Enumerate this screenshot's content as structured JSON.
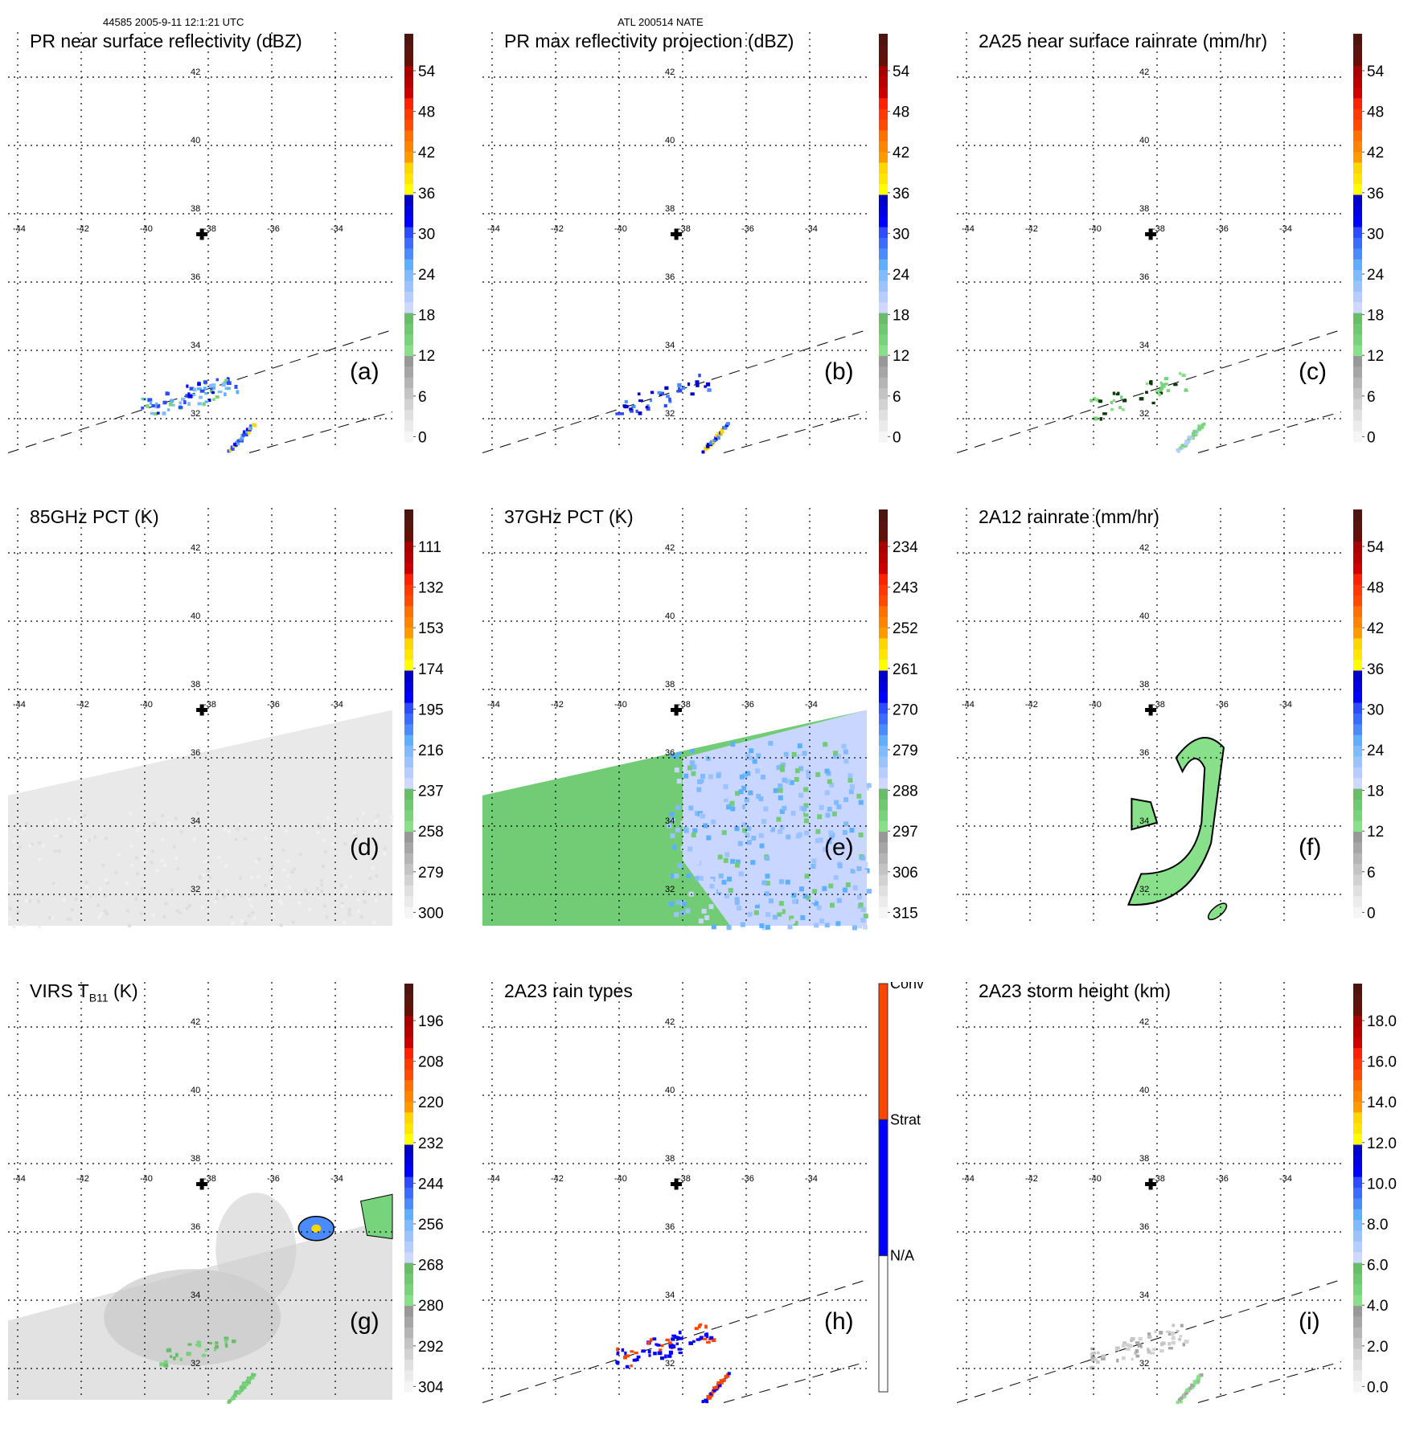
{
  "header": {
    "left": "44585 2005-9-11 12:1:21 UTC",
    "center": "ATL 200514 NATE"
  },
  "map": {
    "lon_ticks": [
      "-44",
      "-42",
      "-40",
      "-38",
      "-36",
      "-34"
    ],
    "lat_ticks": [
      "42",
      "40",
      "38",
      "36",
      "34",
      "32"
    ],
    "lon_values": [
      -44,
      -42,
      -40,
      -38,
      -36,
      -34
    ],
    "lat_values": [
      42,
      40,
      38,
      36,
      34,
      32
    ],
    "center_marker": {
      "lon": -38.2,
      "lat": 37.4,
      "icon": "plus-cross-icon"
    }
  },
  "colors": {
    "scale17": [
      "#f5f5f5",
      "#ebebeb",
      "#e0e0e0",
      "#d2d2d2",
      "#c4c4c4",
      "#b5b5b5",
      "#a6a6a6",
      "#989898",
      "#88e08a",
      "#78d47c",
      "#6fc872",
      "#68bc6a",
      "#cfd8ff",
      "#b6cdfe",
      "#9cc3fe",
      "#80baff",
      "#5db0ff",
      "#4a8cff",
      "#3c6cff",
      "#2e4bff",
      "#0000ff",
      "#0000e0",
      "#0000c8",
      "#ffff00",
      "#ffe600",
      "#ffd600",
      "#ff9900",
      "#ff8400",
      "#ff7000",
      "#ff4a00",
      "#ff3a00",
      "#ff2200",
      "#cc0000",
      "#b80000",
      "#a80000",
      "#641008",
      "#5a1410",
      "#4e1410"
    ],
    "conv": "#ff4500",
    "strat": "#0000ff",
    "na": "#ffffff"
  },
  "chart_data": [
    {
      "id": "a",
      "type": "heatmap",
      "title": "PR near surface reflectivity (dBZ)",
      "panel_label": "(a)",
      "colorbar_ticks": [
        "54",
        "48",
        "42",
        "36",
        "30",
        "24",
        "18",
        "12",
        "6",
        "0"
      ],
      "colorbar_range": [
        0,
        60
      ],
      "swath": "pr",
      "features": [
        {
          "lon": -39.2,
          "lat": 32.6,
          "class": "blue-light",
          "desc": "scattered echoes"
        },
        {
          "lon": -38.6,
          "lat": 32.9,
          "class": "blue"
        },
        {
          "lon": -37.2,
          "lat": 31.7,
          "class": "blue-yellow",
          "desc": "convective line"
        },
        {
          "lon": -35.2,
          "lat": 32.5,
          "class": "blue"
        }
      ]
    },
    {
      "id": "b",
      "type": "heatmap",
      "title": "PR max reflectivity projection (dBZ)",
      "panel_label": "(b)",
      "colorbar_ticks": [
        "54",
        "48",
        "42",
        "36",
        "30",
        "24",
        "18",
        "12",
        "6",
        "0"
      ],
      "colorbar_range": [
        0,
        60
      ],
      "swath": "pr",
      "features": [
        {
          "lon": -38.8,
          "lat": 32.7,
          "class": "blue-outlined"
        },
        {
          "lon": -37.2,
          "lat": 31.7,
          "class": "yellow-outlined"
        }
      ]
    },
    {
      "id": "c",
      "type": "heatmap",
      "title": "2A25 near surface rainrate (mm/hr)",
      "panel_label": "(c)",
      "colorbar_ticks": [
        "54",
        "48",
        "42",
        "36",
        "30",
        "24",
        "18",
        "12",
        "6",
        "0"
      ],
      "colorbar_range": [
        0,
        60
      ],
      "swath": "pr",
      "features": [
        {
          "lon": -38.6,
          "lat": 32.6,
          "class": "green-outlined"
        },
        {
          "lon": -37.2,
          "lat": 31.7,
          "class": "green-outlined"
        }
      ]
    },
    {
      "id": "d",
      "type": "heatmap",
      "title": "85GHz PCT (K)",
      "panel_label": "(d)",
      "colorbar_ticks": [
        "111",
        "132",
        "153",
        "174",
        "195",
        "216",
        "237",
        "258",
        "279",
        "300"
      ],
      "colorbar_range": [
        300,
        90
      ],
      "swath": "tmi",
      "fill": "gray-light"
    },
    {
      "id": "e",
      "type": "heatmap",
      "title": "37GHz PCT (K)",
      "panel_label": "(e)",
      "colorbar_ticks": [
        "234",
        "243",
        "252",
        "261",
        "270",
        "279",
        "288",
        "297",
        "306",
        "315"
      ],
      "colorbar_range": [
        315,
        225
      ],
      "swath": "tmi",
      "fill": "green-west-blue-east"
    },
    {
      "id": "f",
      "type": "heatmap",
      "title": "2A12 rainrate (mm/hr)",
      "panel_label": "(f)",
      "colorbar_ticks": [
        "54",
        "48",
        "42",
        "36",
        "30",
        "24",
        "18",
        "12",
        "6",
        "0"
      ],
      "colorbar_range": [
        0,
        60
      ],
      "swath": "tmi",
      "fill": "green-spiral-band"
    },
    {
      "id": "g",
      "type": "heatmap",
      "title": "VIRS T",
      "title_sub": "B11",
      "title_suffix": " (K)",
      "panel_label": "(g)",
      "colorbar_ticks": [
        "196",
        "208",
        "220",
        "232",
        "244",
        "256",
        "268",
        "280",
        "292",
        "304"
      ],
      "colorbar_range": [
        304,
        184
      ],
      "swath": "virs",
      "fill": "gray-cloud"
    },
    {
      "id": "h",
      "type": "heatmap",
      "title": "2A23 rain types",
      "panel_label": "(h)",
      "colorbar_categories": [
        "Conv",
        "Strat",
        "N/A"
      ],
      "swath": "pr",
      "features": [
        {
          "lon": -38.8,
          "lat": 32.7,
          "class": "strat"
        },
        {
          "lon": -39.4,
          "lat": 32.1,
          "class": "conv"
        },
        {
          "lon": -37.2,
          "lat": 31.7,
          "class": "conv"
        }
      ]
    },
    {
      "id": "i",
      "type": "heatmap",
      "title": "2A23 storm height (km)",
      "panel_label": "(i)",
      "colorbar_ticks": [
        "18.0",
        "16.0",
        "14.0",
        "12.0",
        "10.0",
        "8.0",
        "6.0",
        "4.0",
        "2.0",
        "0.0"
      ],
      "colorbar_range": [
        0,
        20
      ],
      "swath": "pr",
      "features": [
        {
          "lon": -38.6,
          "lat": 32.7,
          "class": "gray"
        },
        {
          "lon": -37.2,
          "lat": 31.7,
          "class": "green"
        }
      ]
    }
  ]
}
